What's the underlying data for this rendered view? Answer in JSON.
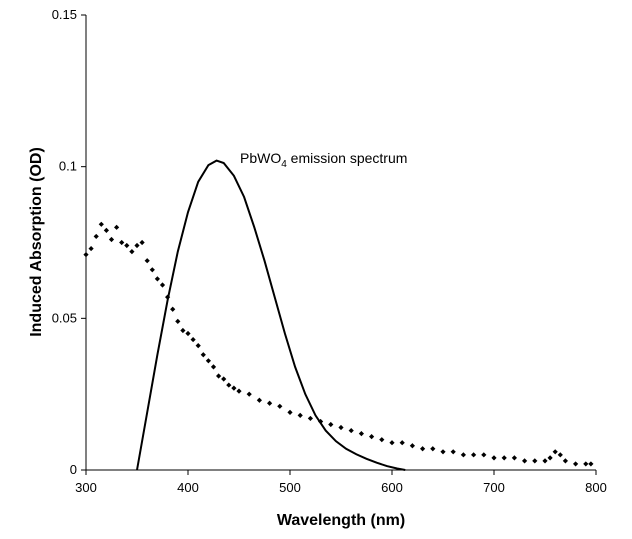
{
  "chart_data": {
    "type": "scatter",
    "title": "",
    "xlabel": "Wavelength (nm)",
    "ylabel": "Induced Absorption (OD)",
    "xlim": [
      300,
      800
    ],
    "ylim": [
      0,
      0.15
    ],
    "grid": false,
    "legend": "none",
    "x_ticks": [
      "300",
      "400",
      "500",
      "600",
      "700",
      "800"
    ],
    "y_ticks": [
      "0",
      "0.05",
      "0.1",
      "0.15"
    ],
    "annotation": {
      "main": "PbWO",
      "sub": "4",
      "rest": " emission spectrum"
    },
    "series": [
      {
        "style": "markers",
        "color": "#000000",
        "points": [
          [
            300,
            0.071
          ],
          [
            305,
            0.073
          ],
          [
            310,
            0.077
          ],
          [
            315,
            0.081
          ],
          [
            320,
            0.079
          ],
          [
            325,
            0.076
          ],
          [
            330,
            0.08
          ],
          [
            335,
            0.075
          ],
          [
            340,
            0.074
          ],
          [
            345,
            0.072
          ],
          [
            350,
            0.074
          ],
          [
            355,
            0.075
          ],
          [
            360,
            0.069
          ],
          [
            365,
            0.066
          ],
          [
            370,
            0.063
          ],
          [
            375,
            0.061
          ],
          [
            380,
            0.057
          ],
          [
            385,
            0.053
          ],
          [
            390,
            0.049
          ],
          [
            395,
            0.046
          ],
          [
            400,
            0.045
          ],
          [
            405,
            0.043
          ],
          [
            410,
            0.041
          ],
          [
            415,
            0.038
          ],
          [
            420,
            0.036
          ],
          [
            425,
            0.034
          ],
          [
            430,
            0.031
          ],
          [
            435,
            0.03
          ],
          [
            440,
            0.028
          ],
          [
            445,
            0.027
          ],
          [
            450,
            0.026
          ],
          [
            460,
            0.025
          ],
          [
            470,
            0.023
          ],
          [
            480,
            0.022
          ],
          [
            490,
            0.021
          ],
          [
            500,
            0.019
          ],
          [
            510,
            0.018
          ],
          [
            520,
            0.017
          ],
          [
            530,
            0.016
          ],
          [
            540,
            0.015
          ],
          [
            550,
            0.014
          ],
          [
            560,
            0.013
          ],
          [
            570,
            0.012
          ],
          [
            580,
            0.011
          ],
          [
            590,
            0.01
          ],
          [
            600,
            0.009
          ],
          [
            610,
            0.009
          ],
          [
            620,
            0.008
          ],
          [
            630,
            0.007
          ],
          [
            640,
            0.007
          ],
          [
            650,
            0.006
          ],
          [
            660,
            0.006
          ],
          [
            670,
            0.005
          ],
          [
            680,
            0.005
          ],
          [
            690,
            0.005
          ],
          [
            700,
            0.004
          ],
          [
            710,
            0.004
          ],
          [
            720,
            0.004
          ],
          [
            730,
            0.003
          ],
          [
            740,
            0.003
          ],
          [
            750,
            0.003
          ],
          [
            755,
            0.004
          ],
          [
            760,
            0.006
          ],
          [
            765,
            0.005
          ],
          [
            770,
            0.003
          ],
          [
            780,
            0.002
          ],
          [
            790,
            0.002
          ],
          [
            795,
            0.002
          ]
        ]
      },
      {
        "style": "line",
        "color": "#000000",
        "points": [
          [
            350,
            0
          ],
          [
            360,
            0.019
          ],
          [
            370,
            0.038
          ],
          [
            380,
            0.056
          ],
          [
            390,
            0.072
          ],
          [
            400,
            0.085
          ],
          [
            410,
            0.095
          ],
          [
            420,
            0.1005
          ],
          [
            428,
            0.102
          ],
          [
            435,
            0.1012
          ],
          [
            445,
            0.097
          ],
          [
            455,
            0.09
          ],
          [
            465,
            0.08
          ],
          [
            475,
            0.069
          ],
          [
            485,
            0.057
          ],
          [
            495,
            0.045
          ],
          [
            505,
            0.034
          ],
          [
            515,
            0.025
          ],
          [
            525,
            0.018
          ],
          [
            535,
            0.013
          ],
          [
            545,
            0.0095
          ],
          [
            555,
            0.007
          ],
          [
            565,
            0.0052
          ],
          [
            575,
            0.0037
          ],
          [
            585,
            0.0024
          ],
          [
            595,
            0.0013
          ],
          [
            605,
            0.0005
          ],
          [
            613,
            0.0
          ]
        ]
      }
    ]
  }
}
